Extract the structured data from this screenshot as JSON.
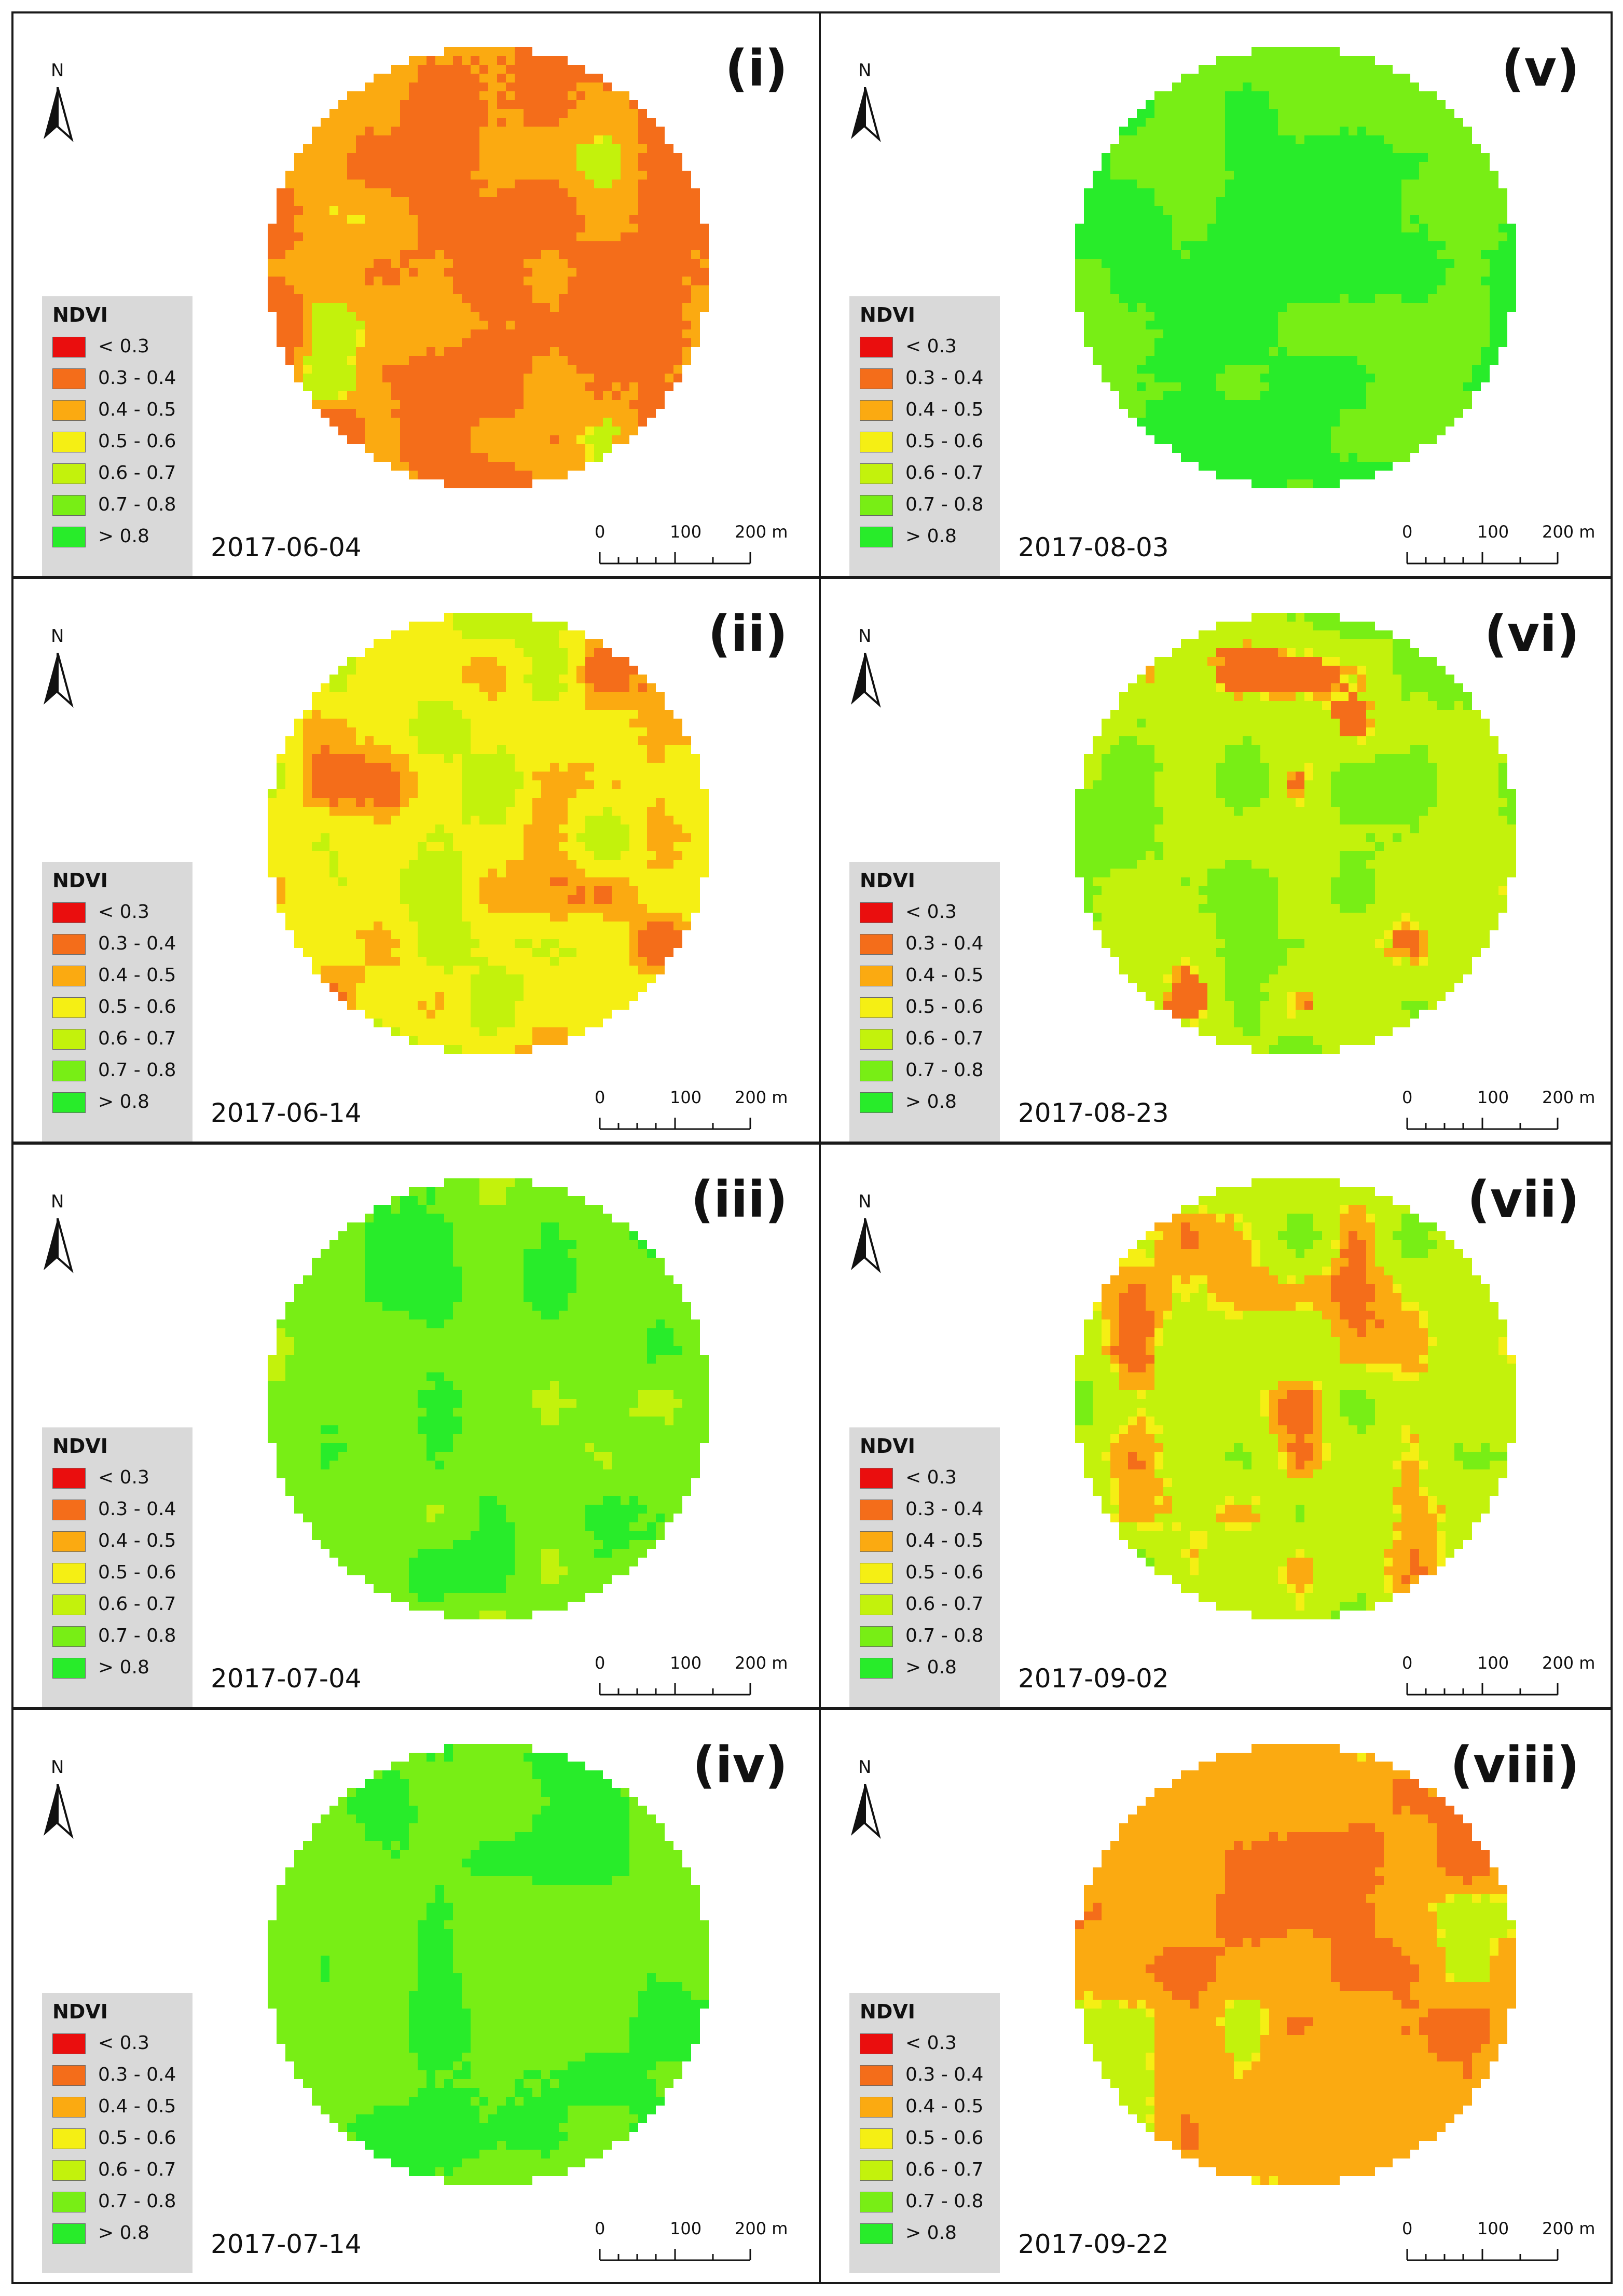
{
  "legend_colors": [
    "#ea0e0e",
    "#f46d1a",
    "#fbaa11",
    "#f5ef14",
    "#c3f20c",
    "#78ee15",
    "#28ec2a"
  ],
  "legend": {
    "title": "NDVI",
    "classes": [
      "< 0.3",
      "0.3 - 0.4",
      "0.4 - 0.5",
      "0.5 - 0.6",
      "0.6 - 0.7",
      "0.7 - 0.8",
      "> 0.8"
    ]
  },
  "north_label": "N",
  "scale": {
    "t0": "0",
    "t1": "100",
    "t2": "200 m"
  },
  "panels": [
    {
      "label": "(i)",
      "date": "2017-06-04",
      "mix": [
        0.0,
        0.55,
        0.4,
        0.03,
        0.02,
        0.0,
        0.0
      ]
    },
    {
      "label": "(ii)",
      "date": "2017-06-14",
      "mix": [
        0.0,
        0.05,
        0.25,
        0.45,
        0.25,
        0.0,
        0.0
      ]
    },
    {
      "label": "(iii)",
      "date": "2017-07-04",
      "mix": [
        0.0,
        0.0,
        0.0,
        0.0,
        0.05,
        0.75,
        0.2
      ]
    },
    {
      "label": "(iv)",
      "date": "2017-07-14",
      "mix": [
        0.0,
        0.0,
        0.0,
        0.0,
        0.0,
        0.75,
        0.25
      ]
    },
    {
      "label": "(v)",
      "date": "2017-08-03",
      "mix": [
        0.0,
        0.0,
        0.0,
        0.0,
        0.0,
        0.55,
        0.45
      ]
    },
    {
      "label": "(vi)",
      "date": "2017-08-23",
      "mix": [
        0.0,
        0.03,
        0.04,
        0.03,
        0.6,
        0.3,
        0.0
      ]
    },
    {
      "label": "(vii)",
      "date": "2017-09-02",
      "mix": [
        0.0,
        0.03,
        0.22,
        0.05,
        0.6,
        0.1,
        0.0
      ]
    },
    {
      "label": "(viii)",
      "date": "2017-09-22",
      "mix": [
        0.0,
        0.25,
        0.68,
        0.05,
        0.02,
        0.0,
        0.0
      ]
    }
  ]
}
